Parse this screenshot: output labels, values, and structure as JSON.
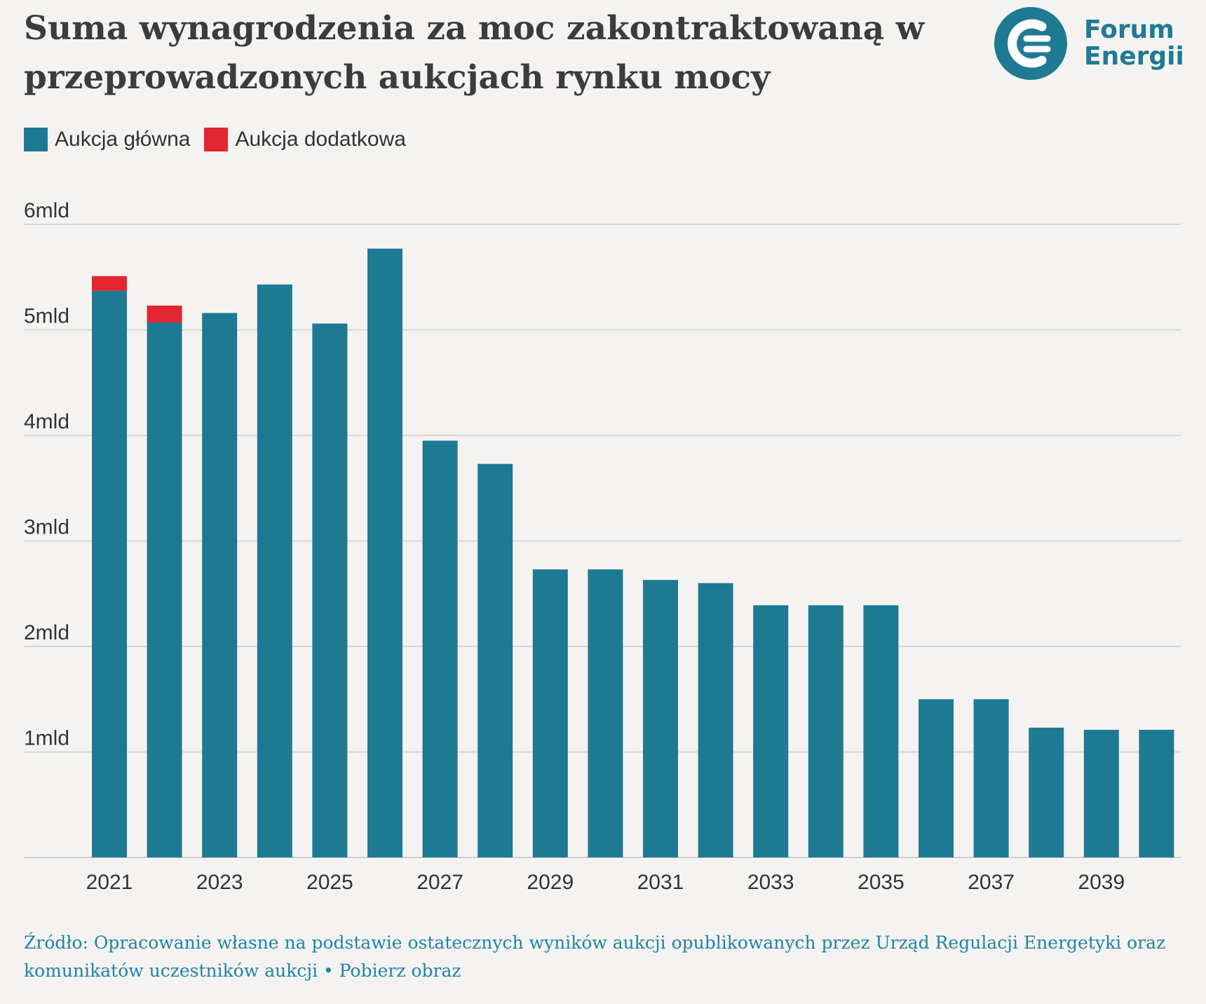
{
  "title": "Suma wynagrodzenia za moc zakontraktowaną w przeprowadzonych aukcjach rynku mocy",
  "logo": {
    "line1": "Forum",
    "line2": "Energii",
    "icon": "forum-energii-logo-icon",
    "color": "#1f7a94"
  },
  "legend": [
    {
      "label": "Aukcja główna",
      "color": "#1d7a93"
    },
    {
      "label": "Aukcja dodatkowa",
      "color": "#e3262f"
    }
  ],
  "source": {
    "prefix": "Źródło: Opracowanie własne na podstawie ostatecznych wyników aukcji opublikowanych przez Urząd Regulacji Energetyki oraz komunikatów uczestników aukcji",
    "separator": " • ",
    "link": "Pobierz obraz"
  },
  "chart_data": {
    "type": "bar",
    "stacked": true,
    "categories": [
      "2021",
      "2022",
      "2023",
      "2024",
      "2025",
      "2026",
      "2027",
      "2028",
      "2029",
      "2030",
      "2031",
      "2032",
      "2033",
      "2034",
      "2035",
      "2036",
      "2037",
      "2038",
      "2039",
      "2040"
    ],
    "x_tick_labels": [
      "2021",
      "",
      "2023",
      "",
      "2025",
      "",
      "2027",
      "",
      "2029",
      "",
      "2031",
      "",
      "2033",
      "",
      "2035",
      "",
      "2037",
      "",
      "2039",
      ""
    ],
    "series": [
      {
        "name": "Aukcja główna",
        "color": "#1d7a93",
        "values": [
          5.37,
          5.07,
          5.16,
          5.43,
          5.06,
          5.77,
          3.95,
          3.73,
          2.73,
          2.73,
          2.63,
          2.6,
          2.39,
          2.39,
          2.39,
          1.5,
          1.5,
          1.23,
          1.21,
          1.21
        ]
      },
      {
        "name": "Aukcja dodatkowa",
        "color": "#e3262f",
        "values": [
          0.14,
          0.16,
          0,
          0,
          0,
          0,
          0,
          0,
          0,
          0,
          0,
          0,
          0,
          0,
          0,
          0,
          0,
          0,
          0,
          0
        ]
      }
    ],
    "y_ticks": [
      1,
      2,
      3,
      4,
      5,
      6
    ],
    "y_tick_labels": [
      "1mld",
      "2mld",
      "3mld",
      "4mld",
      "5mld",
      "6mld"
    ],
    "ylim": [
      0,
      6
    ],
    "grid": true,
    "legend_position": "top-left"
  }
}
